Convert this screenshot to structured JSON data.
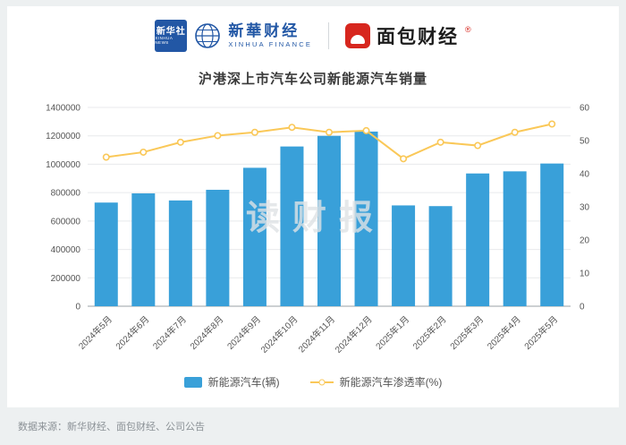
{
  "header": {
    "xinhua_square_line1": "新华社",
    "xinhua_square_line2": "XINHUA NEWS",
    "xinhua_cn": "新華财经",
    "xinhua_en": "XINHUA FINANCE",
    "mianbao_cn": "面包财经",
    "mianbao_reg": "®"
  },
  "watermark": "读财报",
  "footer": {
    "source": "数据来源：新华财经、面包财经、公司公告"
  },
  "colors": {
    "bar": "#39A0D9",
    "line": "#FAC858",
    "xinhua_blue": "#2257A5",
    "mianbao_red": "#d7261e",
    "grid": "#e8eaec",
    "axis": "#9aa0a6",
    "tick_text": "#555555"
  },
  "chart_data": {
    "type": "bar",
    "title": "沪港深上市汽车公司新能源汽车销量",
    "categories": [
      "2024年5月",
      "2024年6月",
      "2024年7月",
      "2024年8月",
      "2024年9月",
      "2024年10月",
      "2024年11月",
      "2024年12月",
      "2025年1月",
      "2025年2月",
      "2025年3月",
      "2025年4月",
      "2025年5月"
    ],
    "series": [
      {
        "name": "新能源汽车(辆)",
        "type": "bar",
        "axis": "left",
        "values": [
          730000,
          795000,
          745000,
          820000,
          975000,
          1125000,
          1200000,
          1230000,
          710000,
          705000,
          935000,
          950000,
          1005000
        ]
      },
      {
        "name": "新能源汽车渗透率(%)",
        "type": "line",
        "axis": "right",
        "values": [
          45,
          46.5,
          49.5,
          51.5,
          52.5,
          54,
          52.5,
          53,
          44.5,
          49.5,
          48.5,
          52.5,
          55
        ]
      }
    ],
    "left_axis": {
      "min": 0,
      "max": 1400000,
      "step": 200000
    },
    "right_axis": {
      "min": 0,
      "max": 60,
      "step": 10
    },
    "legend": [
      "新能源汽车(辆)",
      "新能源汽车渗透率(%)"
    ],
    "grid": true,
    "legend_position": "bottom"
  }
}
